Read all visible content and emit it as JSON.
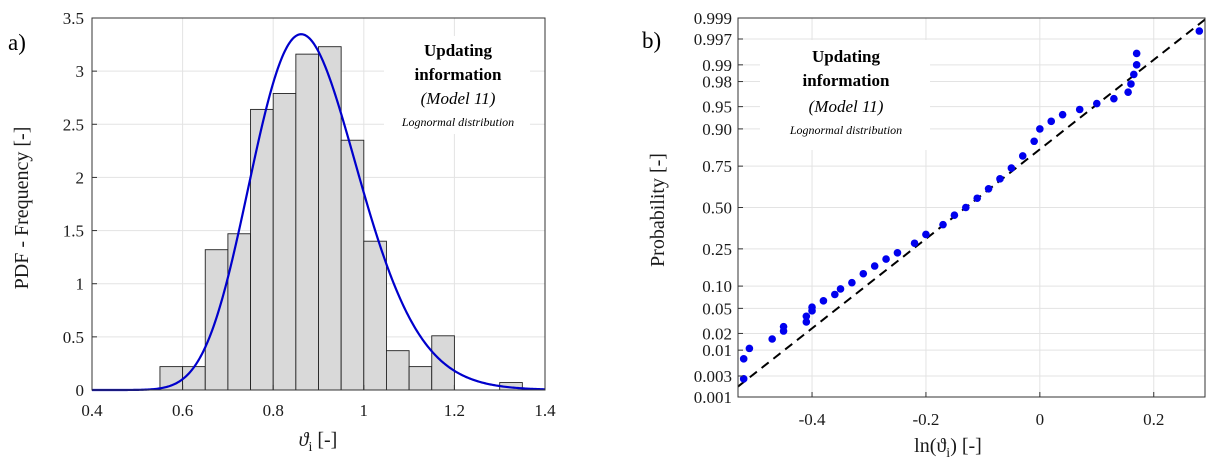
{
  "chart_data": [
    {
      "type": "bar",
      "panel_label": "a)",
      "xlabel": "ϑ",
      "xlabel_sub": "i",
      "xlabel_unit": " [-]",
      "ylabel": "PDF - Frequency [-]",
      "xlim": [
        0.4,
        1.4
      ],
      "ylim": [
        0,
        3.5
      ],
      "xticks": [
        "0.4",
        "0.6",
        "0.8",
        "1",
        "1.2",
        "1.4"
      ],
      "yticks": [
        "0",
        "0.5",
        "1",
        "1.5",
        "2",
        "2.5",
        "3",
        "3.5"
      ],
      "grid": true,
      "bin_edges": [
        0.55,
        0.6,
        0.65,
        0.7,
        0.75,
        0.8,
        0.85,
        0.9,
        0.95,
        1.0,
        1.05,
        1.1,
        1.15,
        1.2,
        1.25,
        1.3,
        1.35
      ],
      "values": [
        0.22,
        0.22,
        1.32,
        1.47,
        2.64,
        2.79,
        3.16,
        3.23,
        2.35,
        1.4,
        0.37,
        0.22,
        0.51,
        0,
        0,
        0.07
      ],
      "bar_color": "#d9d9d9",
      "curve_color": "#0000cc",
      "curve": {
        "name": "Lognormal distribution",
        "mu": -0.13,
        "sigma": 0.137
      },
      "annotation": {
        "line1": "Updating",
        "line2": "information",
        "line3": "(Model 11)",
        "line4": "Lognormal distribution"
      }
    },
    {
      "type": "scatter",
      "panel_label": "b)",
      "xlabel": "ln(ϑ",
      "xlabel_sub": "i",
      "xlabel_unit": ") [-]",
      "ylabel": "Probability [-]",
      "xlim": [
        -0.53,
        0.29
      ],
      "yscale": "normal-probability",
      "ylim": [
        0.001,
        0.999
      ],
      "xtick_values": [
        -0.4,
        -0.2,
        0,
        0.2
      ],
      "xticks": [
        "-0.4",
        "-0.2",
        "0",
        "0.2"
      ],
      "ytick_values": [
        0.001,
        0.003,
        0.01,
        0.02,
        0.05,
        0.1,
        0.25,
        0.5,
        0.75,
        0.9,
        0.95,
        0.98,
        0.99,
        0.997,
        0.999
      ],
      "yticks": [
        "0.001",
        "0.003",
        "0.01",
        "0.02",
        "0.05",
        "0.10",
        "0.25",
        "0.50",
        "0.75",
        "0.90",
        "0.95",
        "0.98",
        "0.99",
        "0.997",
        "0.999"
      ],
      "grid": true,
      "marker_color": "#0000ee",
      "fit_line": {
        "style": "dashed",
        "color": "#000000",
        "mu": -0.13,
        "sigma": 0.137
      },
      "sample_points": [
        [
          -0.52,
          0.0026
        ],
        [
          -0.52,
          0.0068
        ],
        [
          -0.51,
          0.0108
        ],
        [
          -0.47,
          0.016
        ],
        [
          -0.45,
          0.022
        ],
        [
          -0.45,
          0.026
        ],
        [
          -0.41,
          0.031
        ],
        [
          -0.41,
          0.038
        ],
        [
          -0.4,
          0.046
        ],
        [
          -0.4,
          0.052
        ],
        [
          -0.38,
          0.064
        ],
        [
          -0.36,
          0.078
        ],
        [
          -0.35,
          0.092
        ],
        [
          -0.33,
          0.11
        ],
        [
          -0.31,
          0.14
        ],
        [
          -0.29,
          0.17
        ],
        [
          -0.27,
          0.2
        ],
        [
          -0.25,
          0.23
        ],
        [
          -0.22,
          0.28
        ],
        [
          -0.2,
          0.33
        ],
        [
          -0.17,
          0.39
        ],
        [
          -0.15,
          0.45
        ],
        [
          -0.13,
          0.5
        ],
        [
          -0.11,
          0.56
        ],
        [
          -0.09,
          0.62
        ],
        [
          -0.07,
          0.68
        ],
        [
          -0.05,
          0.74
        ],
        [
          -0.03,
          0.8
        ],
        [
          -0.01,
          0.86
        ],
        [
          0.0,
          0.9
        ],
        [
          0.02,
          0.92
        ],
        [
          0.04,
          0.935
        ],
        [
          0.07,
          0.945
        ],
        [
          0.1,
          0.955
        ],
        [
          0.13,
          0.962
        ],
        [
          0.155,
          0.97
        ],
        [
          0.16,
          0.978
        ],
        [
          0.165,
          0.985
        ],
        [
          0.17,
          0.99
        ],
        [
          0.17,
          0.994
        ],
        [
          0.28,
          0.998
        ]
      ],
      "annotation": {
        "line1": "Updating",
        "line2": "information",
        "line3": "(Model 11)",
        "line4": "Lognormal distribution"
      }
    }
  ]
}
